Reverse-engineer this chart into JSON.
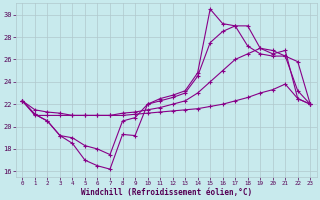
{
  "xlabel": "Windchill (Refroidissement éolien,°C)",
  "bg_color": "#c8eaed",
  "line_color": "#880088",
  "xlim": [
    -0.5,
    23.5
  ],
  "ylim": [
    15.5,
    31.0
  ],
  "yticks": [
    16,
    18,
    20,
    22,
    24,
    26,
    28,
    30
  ],
  "xticks": [
    0,
    1,
    2,
    3,
    4,
    5,
    6,
    7,
    8,
    9,
    10,
    11,
    12,
    13,
    14,
    15,
    16,
    17,
    18,
    19,
    20,
    21,
    22,
    23
  ],
  "line1_x": [
    0,
    1,
    2,
    3,
    4,
    5,
    6,
    7,
    8,
    9,
    10,
    11,
    12,
    13,
    14,
    15,
    16,
    17,
    18,
    19,
    20,
    21,
    22,
    23
  ],
  "line1_y": [
    22.3,
    21.1,
    20.5,
    19.2,
    18.5,
    17.0,
    16.5,
    16.2,
    19.3,
    19.2,
    22.0,
    22.5,
    22.8,
    23.2,
    24.8,
    30.5,
    29.2,
    29.0,
    29.0,
    27.0,
    26.8,
    26.3,
    25.8,
    22.0
  ],
  "line2_x": [
    0,
    1,
    2,
    3,
    4,
    5,
    6,
    7,
    8,
    9,
    10,
    11,
    12,
    13,
    14,
    15,
    16,
    17,
    18,
    19,
    20,
    21,
    22,
    23
  ],
  "line2_y": [
    22.3,
    21.1,
    20.5,
    19.2,
    19.0,
    18.3,
    18.0,
    17.5,
    20.5,
    20.8,
    22.0,
    22.3,
    22.6,
    23.0,
    24.5,
    27.5,
    28.5,
    29.0,
    27.2,
    26.5,
    26.3,
    26.3,
    23.2,
    22.0
  ],
  "line3_x": [
    0,
    1,
    2,
    3,
    4,
    5,
    6,
    7,
    8,
    9,
    10,
    11,
    12,
    13,
    14,
    15,
    16,
    17,
    18,
    19,
    20,
    21,
    22,
    23
  ],
  "line3_y": [
    22.3,
    21.5,
    21.3,
    21.2,
    21.0,
    21.0,
    21.0,
    21.0,
    21.2,
    21.3,
    21.5,
    21.7,
    22.0,
    22.3,
    23.0,
    24.0,
    25.0,
    26.0,
    26.5,
    27.0,
    26.5,
    26.8,
    22.5,
    22.0
  ],
  "line4_x": [
    0,
    1,
    2,
    3,
    4,
    5,
    6,
    7,
    8,
    9,
    10,
    11,
    12,
    13,
    14,
    15,
    16,
    17,
    18,
    19,
    20,
    21,
    22,
    23
  ],
  "line4_y": [
    22.3,
    21.0,
    21.0,
    21.0,
    21.0,
    21.0,
    21.0,
    21.0,
    21.0,
    21.1,
    21.2,
    21.3,
    21.4,
    21.5,
    21.6,
    21.8,
    22.0,
    22.3,
    22.6,
    23.0,
    23.3,
    23.8,
    22.5,
    22.0
  ]
}
